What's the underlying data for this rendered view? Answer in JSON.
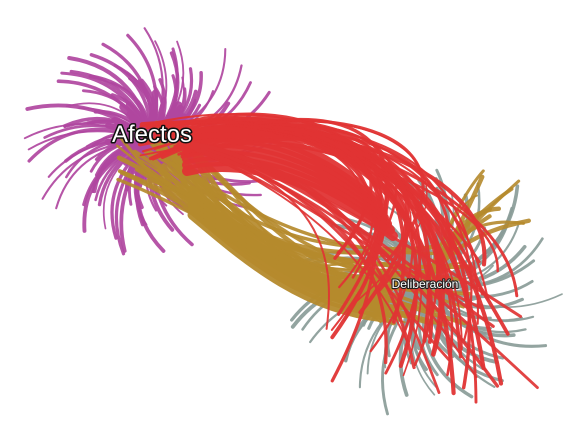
{
  "graph": {
    "nodes": [
      {
        "id": "afectos",
        "label": "Afectos",
        "color": "#b0479f"
      },
      {
        "id": "deliberacion",
        "label": "Deliberación",
        "color": "#8a9c98"
      }
    ],
    "edge_colors": {
      "afectos_self": "#b0479f",
      "deliberacion_self": "#8a9c98",
      "afectos_to_deliberacion": "#e03434",
      "deliberacion_to_afectos": "#b58a2c"
    },
    "background": "#ffffff"
  }
}
